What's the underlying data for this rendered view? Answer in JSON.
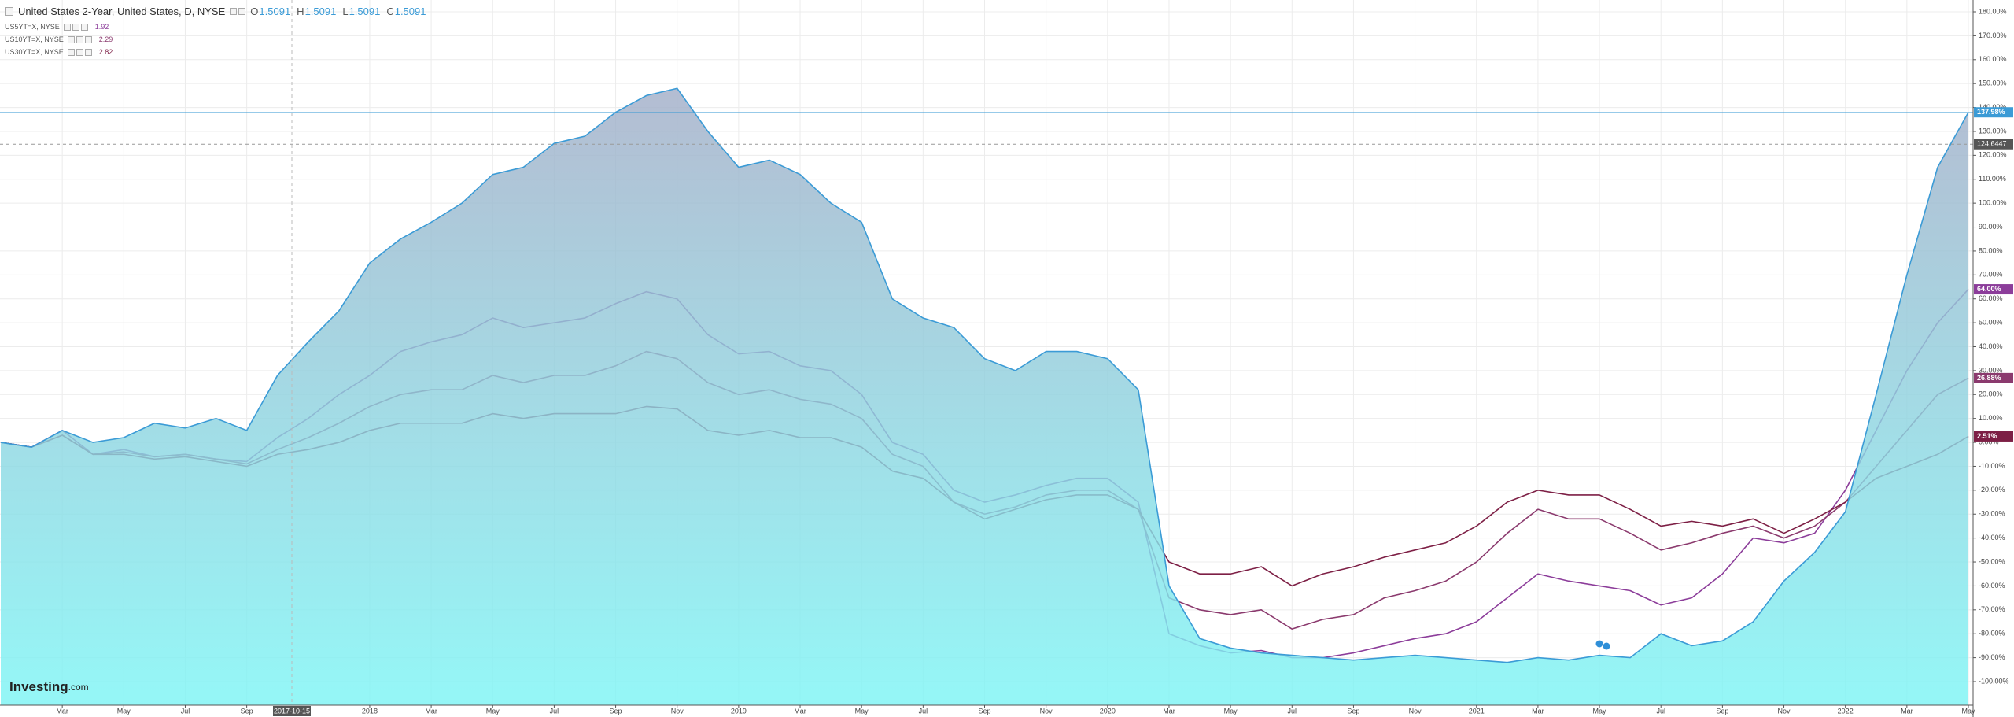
{
  "chart_data": {
    "type": "line",
    "title": "United States 2-Year, United States, D, NYSE",
    "ohlc": [
      {
        "key": "O",
        "value": 1.5091
      },
      {
        "key": "H",
        "value": 1.5091
      },
      {
        "key": "L",
        "value": 1.5091
      },
      {
        "key": "C",
        "value": 1.5091
      }
    ],
    "logo": "Investing",
    "logo_suffix": ".com",
    "crosshair_label": "2017-10-15",
    "crosshair_value": 124.6447,
    "categories": [
      null,
      null,
      "Mar",
      null,
      "May",
      null,
      "Jul",
      null,
      "Sep",
      null,
      null,
      null,
      "2018",
      null,
      "Mar",
      null,
      "May",
      null,
      "Jul",
      null,
      "Sep",
      null,
      "Nov",
      null,
      "2019",
      null,
      "Mar",
      null,
      "May",
      null,
      "Jul",
      null,
      "Sep",
      null,
      "Nov",
      null,
      "2020",
      null,
      "Mar",
      null,
      "May",
      null,
      "Jul",
      null,
      "Sep",
      null,
      "Nov",
      null,
      "2021",
      null,
      "Mar",
      null,
      "May",
      null,
      "Jul",
      null,
      "Sep",
      null,
      "Nov",
      null,
      "2022",
      null,
      "Mar",
      null,
      "May"
    ],
    "series": [
      {
        "style": "area",
        "color": "#3b9bd6",
        "fill_top": "#a3aec8",
        "fill_bottom": "#7df5f5",
        "last_label": "137.98%",
        "values": [
          0,
          -2,
          5,
          0,
          2,
          8,
          6,
          10,
          5,
          28,
          42,
          55,
          75,
          85,
          92,
          100,
          112,
          115,
          125,
          128,
          138,
          145,
          148,
          130,
          115,
          118,
          112,
          100,
          92,
          60,
          52,
          48,
          35,
          30,
          38,
          38,
          35,
          22,
          -60,
          -82,
          -86,
          -88,
          -89,
          -90,
          -91,
          -90,
          -89,
          -90,
          -91,
          -92,
          -90,
          -91,
          -89,
          -90,
          -80,
          -85,
          -83,
          -75,
          -58,
          -46,
          -29,
          20,
          70,
          115,
          137.98
        ]
      },
      {
        "style": "line",
        "name": "US5YT=X, NYSE",
        "price": 1.92,
        "color": "#8c3d9a",
        "last_label": "64.00%",
        "values": [
          0,
          -2,
          5,
          -5,
          -3,
          -6,
          -5,
          -7,
          -8,
          2,
          10,
          20,
          28,
          38,
          42,
          45,
          52,
          48,
          50,
          52,
          58,
          63,
          60,
          45,
          37,
          38,
          32,
          30,
          20,
          0,
          -5,
          -20,
          -25,
          -22,
          -18,
          -15,
          -15,
          -25,
          -80,
          -85,
          -88,
          -87,
          -90,
          -90,
          -88,
          -85,
          -82,
          -80,
          -75,
          -65,
          -55,
          -58,
          -60,
          -62,
          -68,
          -65,
          -55,
          -40,
          -42,
          -38,
          -20,
          5,
          30,
          50,
          64
        ]
      },
      {
        "style": "line",
        "name": "US10YT=X, NYSE",
        "price": 2.29,
        "color": "#8b3a6e",
        "last_label": "26.88%",
        "values": [
          0,
          -2,
          3,
          -5,
          -4,
          -6,
          -5,
          -7,
          -9,
          -3,
          2,
          8,
          15,
          20,
          22,
          22,
          28,
          25,
          28,
          28,
          32,
          38,
          35,
          25,
          20,
          22,
          18,
          16,
          10,
          -5,
          -10,
          -25,
          -30,
          -27,
          -22,
          -20,
          -20,
          -28,
          -65,
          -70,
          -72,
          -70,
          -78,
          -74,
          -72,
          -65,
          -62,
          -58,
          -50,
          -38,
          -28,
          -32,
          -32,
          -38,
          -45,
          -42,
          -38,
          -35,
          -40,
          -35,
          -25,
          -10,
          5,
          20,
          26.88
        ]
      },
      {
        "style": "line",
        "name": "US30YT=X, NYSE",
        "price": 2.82,
        "color": "#7d1f45",
        "last_label": "2.51%",
        "values": [
          0,
          -2,
          3,
          -5,
          -5,
          -7,
          -6,
          -8,
          -10,
          -5,
          -3,
          0,
          5,
          8,
          8,
          8,
          12,
          10,
          12,
          12,
          12,
          15,
          14,
          5,
          3,
          5,
          2,
          2,
          -2,
          -12,
          -15,
          -25,
          -32,
          -28,
          -24,
          -22,
          -22,
          -28,
          -50,
          -55,
          -55,
          -52,
          -60,
          -55,
          -52,
          -48,
          -45,
          -42,
          -35,
          -25,
          -20,
          -22,
          -22,
          -28,
          -35,
          -33,
          -35,
          -32,
          -38,
          -32,
          -25,
          -15,
          -10,
          -5,
          2.51
        ]
      }
    ],
    "ylim": [
      -100,
      180
    ],
    "yticks": [
      {
        "value": 180,
        "label": "180.00%"
      },
      {
        "value": 170,
        "label": "170.00%"
      },
      {
        "value": 160,
        "label": "160.00%"
      },
      {
        "value": 150,
        "label": "150.00%"
      },
      {
        "value": 140,
        "label": "140.00%"
      },
      {
        "value": 130,
        "label": "130.00%"
      },
      {
        "value": 120,
        "label": "120.00%"
      },
      {
        "value": 110,
        "label": "110.00%"
      },
      {
        "value": 100,
        "label": "100.00%"
      },
      {
        "value": 90,
        "label": "90.00%"
      },
      {
        "value": 80,
        "label": "80.00%"
      },
      {
        "value": 70,
        "label": "70.00%"
      },
      {
        "value": 60,
        "label": "60.00%"
      },
      {
        "value": 50,
        "label": "50.00%"
      },
      {
        "value": 40,
        "label": "40.00%"
      },
      {
        "value": 30,
        "label": "30.00%"
      },
      {
        "value": 20,
        "label": "20.00%"
      },
      {
        "value": 10,
        "label": "10.00%"
      },
      {
        "value": 0,
        "label": "0.00%"
      },
      {
        "value": -10,
        "label": "-10.00%"
      },
      {
        "value": -20,
        "label": "-20.00%"
      },
      {
        "value": -30,
        "label": "-30.00%"
      },
      {
        "value": -40,
        "label": "-40.00%"
      },
      {
        "value": -50,
        "label": "-50.00%"
      },
      {
        "value": -60,
        "label": "-60.00%"
      },
      {
        "value": -70,
        "label": "-70.00%"
      },
      {
        "value": -80,
        "label": "-80.00%"
      },
      {
        "value": -90,
        "label": "-90.00%"
      },
      {
        "value": -100,
        "label": "-100.00%"
      }
    ],
    "grid": true
  }
}
